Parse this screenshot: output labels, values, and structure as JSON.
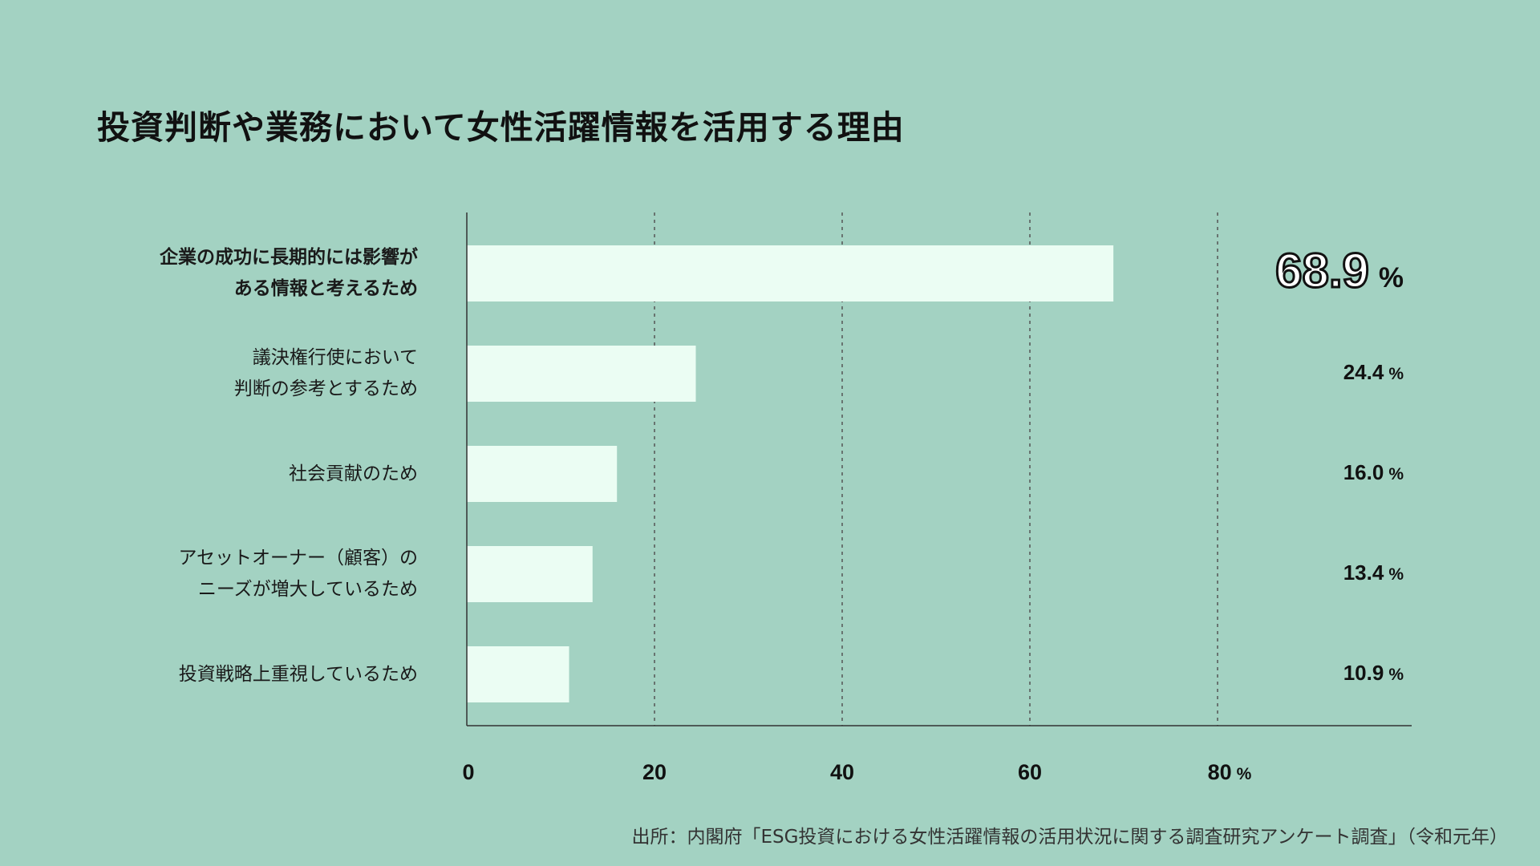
{
  "title": "投資判断や業務において女性活躍情報を活用する理由",
  "source": "出所：内閣府「ESG投資における女性活躍情報の活用状況に関する調査研究アンケート調査」（令和元年）",
  "colors": {
    "background": "#a3d2c2",
    "bar": "#ebfdf3",
    "axis": "#333333"
  },
  "chart_data": {
    "type": "bar",
    "orientation": "horizontal",
    "categories": [
      "企業の成功に長期的には影響が\nある情報と考えるため",
      "議決権行使において\n判断の参考とするため",
      "社会貢献のため",
      "アセットオーナー（顧客）の\nニーズが増大しているため",
      "投資戦略上重視しているため"
    ],
    "values": [
      68.9,
      24.4,
      16.0,
      13.4,
      10.9
    ],
    "value_labels": [
      "68.9",
      "24.4",
      "16.0",
      "13.4",
      "10.9"
    ],
    "value_unit": "%",
    "x_ticks": [
      "0",
      "20",
      "40",
      "60",
      "80"
    ],
    "x_unit": "%",
    "grid": "vertical dashed"
  }
}
